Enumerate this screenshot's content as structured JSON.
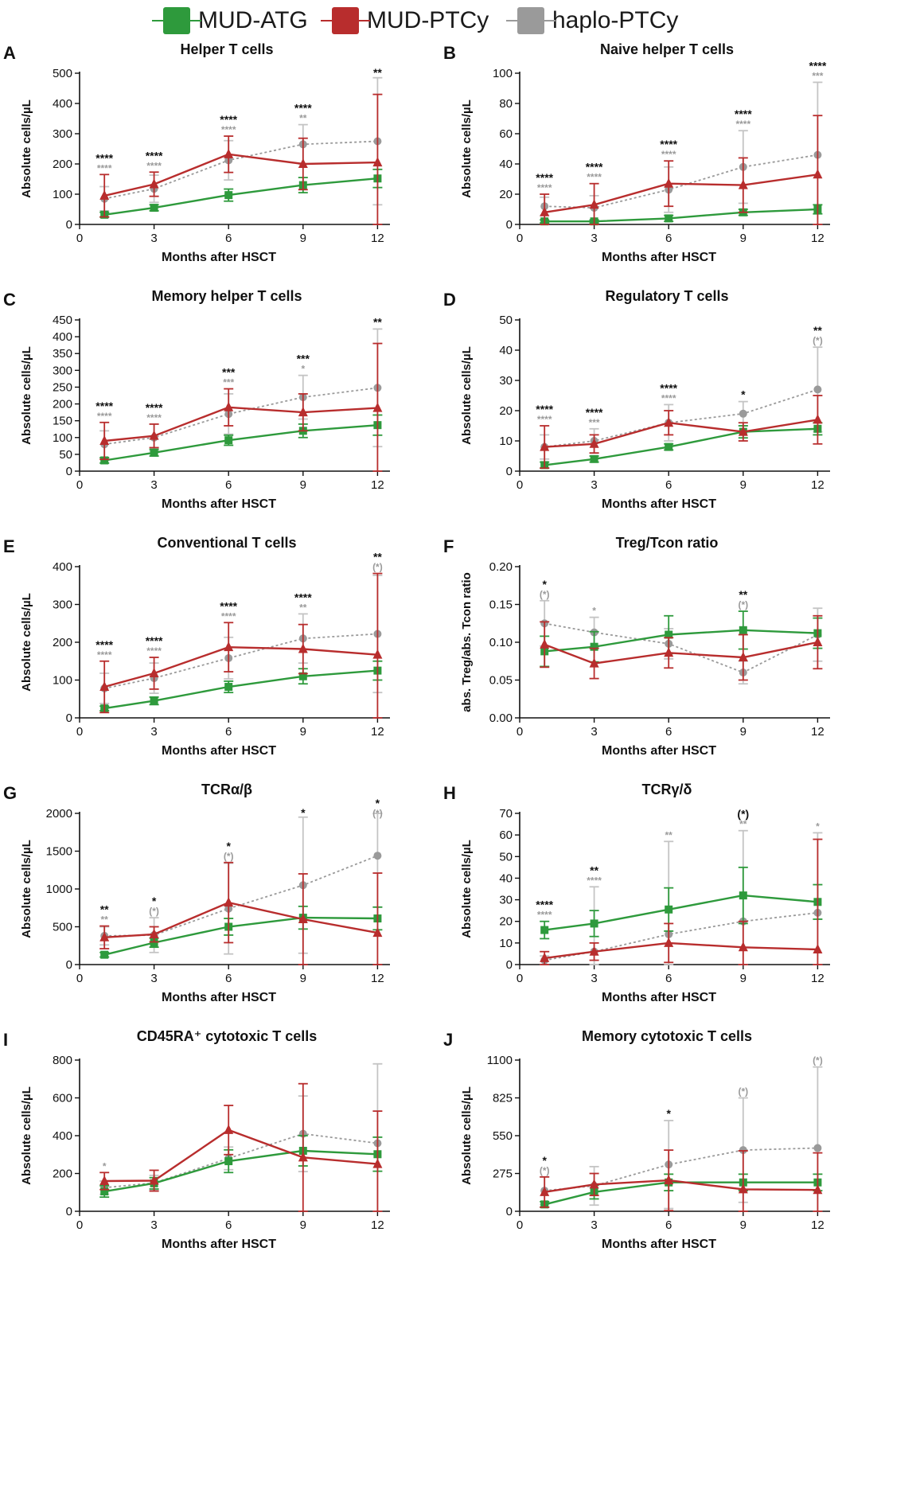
{
  "legend": [
    {
      "label": "MUD-ATG",
      "color": "#2e9a3c"
    },
    {
      "label": "MUD-PTCy",
      "color": "#b82d2d"
    },
    {
      "label": "haplo-PTCy",
      "color": "#9a9a9a"
    }
  ],
  "chart_data": [
    {
      "panel": "A",
      "title": "Helper T cells",
      "type": "line",
      "xlabel": "Months after HSCT",
      "ylabel": "Absolute cells/µL",
      "x": [
        1,
        3,
        6,
        9,
        12
      ],
      "xticks": [
        "0",
        "3",
        "6",
        "9",
        "12"
      ],
      "ylim": [
        0,
        500
      ],
      "yticks": [
        "0",
        "100",
        "200",
        "300",
        "400",
        "500"
      ],
      "series": [
        {
          "name": "MUD-ATG",
          "values": [
            32,
            55,
            97,
            130,
            152
          ],
          "err": [
            8,
            10,
            20,
            25,
            30
          ]
        },
        {
          "name": "MUD-PTCy",
          "values": [
            95,
            133,
            232,
            200,
            205
          ],
          "err": [
            70,
            40,
            60,
            85,
            225
          ]
        },
        {
          "name": "haplo-PTCy",
          "values": [
            85,
            118,
            212,
            265,
            275
          ],
          "err": [
            40,
            45,
            65,
            65,
            210
          ]
        }
      ],
      "sig_black": [
        "****",
        "****",
        "****",
        "****",
        "**"
      ],
      "sig_gray": [
        "****",
        "****",
        "****",
        "**",
        ""
      ]
    },
    {
      "panel": "B",
      "title": "Naive helper T cells",
      "type": "line",
      "xlabel": "Months after HSCT",
      "ylabel": "Absolute cells/µL",
      "x": [
        1,
        3,
        6,
        9,
        12
      ],
      "xticks": [
        "0",
        "3",
        "6",
        "9",
        "12"
      ],
      "ylim": [
        0,
        100
      ],
      "yticks": [
        "0",
        "20",
        "40",
        "60",
        "80",
        "100"
      ],
      "series": [
        {
          "name": "MUD-ATG",
          "values": [
            2,
            2,
            4,
            8,
            10
          ],
          "err": [
            1,
            1,
            2,
            2,
            3
          ]
        },
        {
          "name": "MUD-PTCy",
          "values": [
            8,
            13,
            27,
            26,
            33
          ],
          "err": [
            12,
            14,
            15,
            18,
            39
          ]
        },
        {
          "name": "haplo-PTCy",
          "values": [
            12,
            11,
            23,
            38,
            46
          ],
          "err": [
            6,
            8,
            15,
            24,
            48
          ]
        }
      ],
      "sig_black": [
        "****",
        "****",
        "****",
        "****",
        "****"
      ],
      "sig_gray": [
        "****",
        "****",
        "****",
        "****",
        "***"
      ]
    },
    {
      "panel": "C",
      "title": "Memory helper T cells",
      "type": "line",
      "xlabel": "Months after HSCT",
      "ylabel": "Absolute cells/µL",
      "x": [
        1,
        3,
        6,
        9,
        12
      ],
      "xticks": [
        "0",
        "3",
        "6",
        "9",
        "12"
      ],
      "ylim": [
        0,
        450
      ],
      "yticks": [
        "0",
        "50",
        "100",
        "150",
        "200",
        "250",
        "300",
        "350",
        "400",
        "450"
      ],
      "series": [
        {
          "name": "MUD-ATG",
          "values": [
            32,
            55,
            92,
            120,
            137
          ],
          "err": [
            8,
            10,
            15,
            20,
            30
          ]
        },
        {
          "name": "MUD-PTCy",
          "values": [
            90,
            105,
            190,
            175,
            188
          ],
          "err": [
            55,
            35,
            55,
            55,
            192
          ]
        },
        {
          "name": "haplo-PTCy",
          "values": [
            80,
            100,
            170,
            220,
            248
          ],
          "err": [
            40,
            40,
            60,
            65,
            175
          ]
        }
      ],
      "sig_black": [
        "****",
        "****",
        "***",
        "***",
        "**"
      ],
      "sig_gray": [
        "****",
        "****",
        "***",
        "*",
        ""
      ]
    },
    {
      "panel": "D",
      "title": "Regulatory T cells",
      "type": "line",
      "xlabel": "Months after HSCT",
      "ylabel": "Absolute cells/µL",
      "x": [
        1,
        3,
        6,
        9,
        12
      ],
      "xticks": [
        "0",
        "3",
        "6",
        "9",
        "12"
      ],
      "ylim": [
        0,
        50
      ],
      "yticks": [
        "0",
        "10",
        "20",
        "30",
        "40",
        "50"
      ],
      "series": [
        {
          "name": "MUD-ATG",
          "values": [
            2,
            4,
            8,
            13,
            14
          ],
          "err": [
            1,
            1,
            1,
            2,
            2
          ]
        },
        {
          "name": "MUD-PTCy",
          "values": [
            8,
            9,
            16,
            13,
            17
          ],
          "err": [
            7,
            3,
            4,
            3,
            8
          ]
        },
        {
          "name": "haplo-PTCy",
          "values": [
            8,
            10,
            16,
            19,
            27
          ],
          "err": [
            4,
            4,
            6,
            4,
            14
          ]
        }
      ],
      "sig_black": [
        "****",
        "****",
        "****",
        "*",
        "**"
      ],
      "sig_gray": [
        "****",
        "***",
        "****",
        "",
        "(*)"
      ]
    },
    {
      "panel": "E",
      "title": "Conventional T cells",
      "type": "line",
      "xlabel": "Months after HSCT",
      "ylabel": "Absolute cells/µL",
      "x": [
        1,
        3,
        6,
        9,
        12
      ],
      "xticks": [
        "0",
        "3",
        "6",
        "9",
        "12"
      ],
      "ylim": [
        0,
        400
      ],
      "yticks": [
        "0",
        "100",
        "200",
        "300",
        "400"
      ],
      "series": [
        {
          "name": "MUD-ATG",
          "values": [
            25,
            45,
            82,
            110,
            125
          ],
          "err": [
            6,
            10,
            15,
            20,
            25
          ]
        },
        {
          "name": "MUD-PTCy",
          "values": [
            82,
            118,
            187,
            182,
            167
          ],
          "err": [
            68,
            42,
            65,
            65,
            215
          ]
        },
        {
          "name": "haplo-PTCy",
          "values": [
            78,
            105,
            158,
            210,
            222
          ],
          "err": [
            40,
            40,
            55,
            65,
            155
          ]
        }
      ],
      "sig_black": [
        "****",
        "****",
        "****",
        "****",
        "**"
      ],
      "sig_gray": [
        "****",
        "****",
        "****",
        "**",
        "(*)"
      ]
    },
    {
      "panel": "F",
      "title": "Treg/Tcon ratio",
      "type": "line",
      "xlabel": "Months after HSCT",
      "ylabel": "abs. Treg/abs. Tcon ratio",
      "x": [
        1,
        3,
        6,
        9,
        12
      ],
      "xticks": [
        "0",
        "3",
        "6",
        "9",
        "12"
      ],
      "ylim": [
        0,
        0.2
      ],
      "yticks": [
        "0.00",
        "0.05",
        "0.10",
        "0.15",
        "0.20"
      ],
      "series": [
        {
          "name": "MUD-ATG",
          "values": [
            0.088,
            0.094,
            0.11,
            0.116,
            0.112
          ],
          "err": [
            0.02,
            0.02,
            0.025,
            0.025,
            0.02
          ]
        },
        {
          "name": "MUD-PTCy",
          "values": [
            0.097,
            0.072,
            0.086,
            0.08,
            0.1
          ],
          "err": [
            0.03,
            0.02,
            0.02,
            0.03,
            0.035
          ]
        },
        {
          "name": "haplo-PTCy",
          "values": [
            0.125,
            0.113,
            0.098,
            0.06,
            0.11
          ],
          "err": [
            0.03,
            0.02,
            0.02,
            0.015,
            0.035
          ]
        }
      ],
      "sig_black": [
        "*",
        "",
        "",
        "**",
        ""
      ],
      "sig_gray": [
        "(*)",
        "*",
        "",
        "(*)",
        ""
      ]
    },
    {
      "panel": "G",
      "title": "TCRα/β",
      "type": "line",
      "xlabel": "Months after HSCT",
      "ylabel": "Absolute cells/µL",
      "x": [
        1,
        3,
        6,
        9,
        12
      ],
      "xticks": [
        "0",
        "3",
        "6",
        "9",
        "12"
      ],
      "ylim": [
        0,
        2000
      ],
      "yticks": [
        "0",
        "500",
        "1000",
        "1500",
        "2000"
      ],
      "series": [
        {
          "name": "MUD-ATG",
          "values": [
            130,
            290,
            500,
            620,
            610
          ],
          "err": [
            30,
            60,
            110,
            150,
            150
          ]
        },
        {
          "name": "MUD-PTCy",
          "values": [
            360,
            400,
            820,
            600,
            420
          ],
          "err": [
            150,
            100,
            530,
            600,
            790
          ]
        },
        {
          "name": "haplo-PTCy",
          "values": [
            380,
            390,
            740,
            1050,
            1440
          ],
          "err": [
            120,
            230,
            600,
            900,
            680
          ]
        }
      ],
      "sig_black": [
        "**",
        "*",
        "*",
        "*",
        "*"
      ],
      "sig_gray": [
        "**",
        "(*)",
        "(*)",
        "",
        "(*)"
      ]
    },
    {
      "panel": "H",
      "title": "TCRγ/δ",
      "type": "line",
      "xlabel": "Months after HSCT",
      "ylabel": "Absolute cells/µL",
      "x": [
        1,
        3,
        6,
        9,
        12
      ],
      "xticks": [
        "0",
        "3",
        "6",
        "9",
        "12"
      ],
      "ylim": [
        0,
        70
      ],
      "yticks": [
        "0",
        "10",
        "20",
        "30",
        "40",
        "50",
        "60",
        "70"
      ],
      "series": [
        {
          "name": "MUD-ATG",
          "values": [
            16,
            19,
            25.5,
            32,
            29
          ],
          "err": [
            4,
            6,
            10,
            13,
            8
          ]
        },
        {
          "name": "MUD-PTCy",
          "values": [
            3,
            6,
            10,
            8,
            7
          ],
          "err": [
            3,
            4,
            9,
            12,
            51
          ]
        },
        {
          "name": "haplo-PTCy",
          "values": [
            2,
            6,
            14,
            20,
            24
          ],
          "err": [
            2,
            30,
            43,
            42,
            37
          ]
        }
      ],
      "sig_black": [
        "****",
        "**",
        "",
        "(*)",
        ""
      ],
      "sig_gray": [
        "****",
        "****",
        "**",
        "**",
        "*"
      ]
    },
    {
      "panel": "I",
      "title": "CD45RA⁺ cytotoxic T cells",
      "type": "line",
      "xlabel": "Months after HSCT",
      "ylabel": "Absolute cells/µL",
      "x": [
        1,
        3,
        6,
        9,
        12
      ],
      "xticks": [
        "0",
        "3",
        "6",
        "9",
        "12"
      ],
      "ylim": [
        0,
        800
      ],
      "yticks": [
        "0",
        "200",
        "400",
        "600",
        "800"
      ],
      "series": [
        {
          "name": "MUD-ATG",
          "values": [
            105,
            148,
            265,
            320,
            302
          ],
          "err": [
            30,
            30,
            60,
            80,
            90
          ]
        },
        {
          "name": "MUD-PTCy",
          "values": [
            160,
            162,
            430,
            285,
            250
          ],
          "err": [
            45,
            55,
            130,
            390,
            280
          ]
        },
        {
          "name": "haplo-PTCy",
          "values": [
            125,
            150,
            280,
            410,
            360
          ],
          "err": [
            35,
            40,
            60,
            200,
            420
          ]
        }
      ],
      "sig_black": [
        "",
        "",
        "",
        "",
        ""
      ],
      "sig_gray": [
        "*",
        "",
        "",
        "",
        ""
      ]
    },
    {
      "panel": "J",
      "title": "Memory cytotoxic T cells",
      "type": "line",
      "xlabel": "Months after HSCT",
      "ylabel": "Absolute cells/µL",
      "x": [
        1,
        3,
        6,
        9,
        12
      ],
      "xticks": [
        "0",
        "3",
        "6",
        "9",
        "12"
      ],
      "ylim": [
        0,
        1100
      ],
      "yticks": [
        "0",
        "275",
        "550",
        "825",
        "1100"
      ],
      "series": [
        {
          "name": "MUD-ATG",
          "values": [
            50,
            140,
            210,
            210,
            210
          ],
          "err": [
            20,
            50,
            60,
            60,
            60
          ]
        },
        {
          "name": "MUD-PTCy",
          "values": [
            140,
            195,
            225,
            160,
            155
          ],
          "err": [
            110,
            80,
            220,
            280,
            270
          ]
        },
        {
          "name": "haplo-PTCy",
          "values": [
            150,
            185,
            340,
            445,
            460
          ],
          "err": [
            100,
            140,
            320,
            380,
            590
          ]
        }
      ],
      "sig_black": [
        "*",
        "",
        "*",
        "",
        ""
      ],
      "sig_gray": [
        "(*)",
        "",
        "",
        "(*)",
        "(*)"
      ]
    }
  ]
}
